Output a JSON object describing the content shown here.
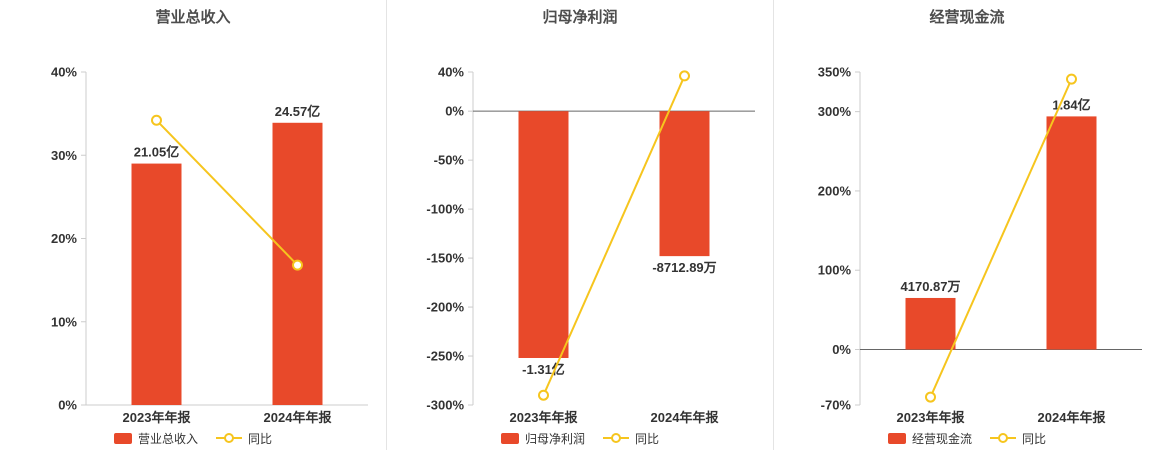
{
  "colors": {
    "bar": "#e8492a",
    "line": "#f6c51e",
    "title": "#4d4d4d",
    "axis": "#cccccc",
    "zero_line": "#666666",
    "tick_text": "#333333",
    "label_text": "#333333"
  },
  "chart_data": [
    {
      "type": "bar",
      "title": "营业总收入",
      "categories": [
        "2023年年报",
        "2024年年报"
      ],
      "ylim": [
        0,
        40
      ],
      "y_ticks": [
        0,
        10,
        20,
        30,
        40
      ],
      "y_tick_labels": [
        "0%",
        "10%",
        "20%",
        "30%",
        "40%"
      ],
      "bars": {
        "name": "营业总收入",
        "values_pct": [
          29,
          33.9
        ],
        "data_labels": [
          "21.05亿",
          "24.57亿"
        ]
      },
      "line": {
        "name": "同比",
        "values_pct": [
          34.2,
          16.8
        ]
      },
      "legend_position": "bottom",
      "grid": false
    },
    {
      "type": "bar",
      "title": "归母净利润",
      "categories": [
        "2023年年报",
        "2024年年报"
      ],
      "ylim": [
        -300,
        40
      ],
      "y_ticks": [
        40,
        0,
        -50,
        -100,
        -150,
        -200,
        -250,
        -300
      ],
      "y_tick_labels": [
        "40%",
        "0%",
        "-50%",
        "-100%",
        "-150%",
        "-200%",
        "-250%",
        "-300%"
      ],
      "bars": {
        "name": "归母净利润",
        "values_pct": [
          -252,
          -148
        ],
        "data_labels": [
          "-1.31亿",
          "-8712.89万"
        ]
      },
      "line": {
        "name": "同比",
        "values_pct": [
          -290,
          36
        ]
      },
      "legend_position": "bottom",
      "grid": false
    },
    {
      "type": "bar",
      "title": "经营现金流",
      "categories": [
        "2023年年报",
        "2024年年报"
      ],
      "ylim": [
        -70,
        350
      ],
      "y_ticks": [
        350,
        300,
        200,
        100,
        0,
        -70
      ],
      "y_tick_labels": [
        "350%",
        "300%",
        "200%",
        "100%",
        "0%",
        "-70%"
      ],
      "bars": {
        "name": "经营现金流",
        "values_pct": [
          65,
          294
        ],
        "data_labels": [
          "4170.87万",
          "1.84亿"
        ]
      },
      "line": {
        "name": "同比",
        "values_pct": [
          -60,
          341
        ]
      },
      "legend_position": "bottom",
      "grid": false
    }
  ]
}
